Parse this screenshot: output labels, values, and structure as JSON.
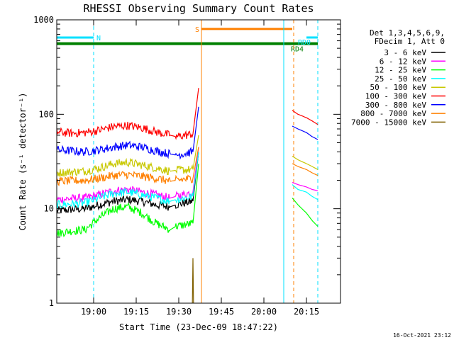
{
  "chart_data": {
    "type": "line",
    "title": "RHESSI Observing Summary Count Rates",
    "xlabel": "Start Time (23-Dec-09 18:47:22)",
    "ylabel": "Count Rate (s⁻¹ detector⁻¹)",
    "footer": "16-Oct-2021 23:12",
    "x_axis": {
      "start": "18:47:22",
      "end": "20:27",
      "scale": "linear",
      "ticks": [
        {
          "minute": 13,
          "label": "19:00"
        },
        {
          "minute": 28,
          "label": "19:15"
        },
        {
          "minute": 43,
          "label": "19:30"
        },
        {
          "minute": 58,
          "label": "19:45"
        },
        {
          "minute": 73,
          "label": "20:00"
        },
        {
          "minute": 88,
          "label": "20:15"
        }
      ]
    },
    "y_axis": {
      "scale": "log",
      "range": [
        1,
        1000
      ],
      "ticks": [
        {
          "value": 1,
          "label": "1"
        },
        {
          "value": 10,
          "label": "10"
        },
        {
          "value": 100,
          "label": "100"
        },
        {
          "value": 1000,
          "label": "1000"
        }
      ]
    },
    "legend": {
      "position": "right",
      "header": [
        "Det 1,3,4,5,6,9,",
        "FDecim 1, Att 0"
      ]
    },
    "series": [
      {
        "name": "3 - 6 keV",
        "color": "#000000",
        "values": [
          [
            0,
            9.5
          ],
          [
            5,
            9.8
          ],
          [
            10,
            10
          ],
          [
            15,
            11
          ],
          [
            20,
            12
          ],
          [
            25,
            12.5
          ],
          [
            30,
            12
          ],
          [
            35,
            11
          ],
          [
            40,
            10.5
          ],
          [
            42,
            11
          ],
          [
            48,
            12
          ],
          [
            50,
            40
          ]
        ]
      },
      {
        "name": "6 - 12 keV",
        "color": "#ff00ff",
        "values": [
          [
            0,
            12.5
          ],
          [
            5,
            12.8
          ],
          [
            10,
            13
          ],
          [
            15,
            14
          ],
          [
            20,
            15.5
          ],
          [
            25,
            16
          ],
          [
            30,
            15
          ],
          [
            35,
            14
          ],
          [
            40,
            13
          ],
          [
            42,
            13.5
          ],
          [
            48,
            15
          ],
          [
            50,
            45
          ],
          [
            83,
            19
          ],
          [
            85,
            18
          ],
          [
            88,
            17
          ],
          [
            90,
            16
          ],
          [
            92,
            15.5
          ]
        ]
      },
      {
        "name": "12 - 25 keV",
        "color": "#00ff00",
        "values": [
          [
            0,
            5.5
          ],
          [
            5,
            5.8
          ],
          [
            10,
            6
          ],
          [
            15,
            8
          ],
          [
            20,
            10
          ],
          [
            25,
            10.5
          ],
          [
            30,
            9
          ],
          [
            35,
            7
          ],
          [
            40,
            6
          ],
          [
            42,
            6.5
          ],
          [
            48,
            7
          ],
          [
            50,
            30
          ],
          [
            83,
            13
          ],
          [
            85,
            11
          ],
          [
            88,
            9
          ],
          [
            90,
            7.5
          ],
          [
            92,
            6.5
          ]
        ]
      },
      {
        "name": "25 - 50 keV",
        "color": "#00ffff",
        "values": [
          [
            0,
            11
          ],
          [
            5,
            11.2
          ],
          [
            10,
            11.5
          ],
          [
            15,
            13
          ],
          [
            20,
            14.5
          ],
          [
            25,
            15
          ],
          [
            30,
            14
          ],
          [
            35,
            13
          ],
          [
            40,
            12
          ],
          [
            42,
            12.5
          ],
          [
            48,
            13.5
          ],
          [
            50,
            40
          ],
          [
            83,
            18
          ],
          [
            85,
            16
          ],
          [
            88,
            15
          ],
          [
            90,
            13.5
          ],
          [
            92,
            12.5
          ]
        ]
      },
      {
        "name": "50 - 100 keV",
        "color": "#c8c800",
        "values": [
          [
            0,
            24
          ],
          [
            5,
            24.5
          ],
          [
            10,
            25
          ],
          [
            15,
            27
          ],
          [
            20,
            30
          ],
          [
            25,
            31
          ],
          [
            30,
            29
          ],
          [
            35,
            27
          ],
          [
            40,
            25
          ],
          [
            42,
            25.5
          ],
          [
            48,
            26
          ],
          [
            50,
            60
          ],
          [
            83,
            36
          ],
          [
            85,
            33
          ],
          [
            88,
            30
          ],
          [
            90,
            28
          ],
          [
            92,
            26
          ]
        ]
      },
      {
        "name": "100 - 300 keV",
        "color": "#ff0000",
        "values": [
          [
            0,
            65
          ],
          [
            5,
            63
          ],
          [
            10,
            64
          ],
          [
            15,
            68
          ],
          [
            20,
            74
          ],
          [
            25,
            76
          ],
          [
            30,
            72
          ],
          [
            35,
            65
          ],
          [
            40,
            60
          ],
          [
            42,
            58
          ],
          [
            48,
            62
          ],
          [
            50,
            190
          ],
          [
            83,
            110
          ],
          [
            85,
            100
          ],
          [
            88,
            92
          ],
          [
            90,
            85
          ],
          [
            92,
            78
          ]
        ]
      },
      {
        "name": "300 - 800 keV",
        "color": "#0000ff",
        "values": [
          [
            0,
            42
          ],
          [
            5,
            41
          ],
          [
            10,
            40
          ],
          [
            15,
            42
          ],
          [
            20,
            45
          ],
          [
            25,
            47
          ],
          [
            30,
            45
          ],
          [
            35,
            41
          ],
          [
            40,
            38
          ],
          [
            42,
            37
          ],
          [
            48,
            40
          ],
          [
            50,
            120
          ],
          [
            83,
            75
          ],
          [
            85,
            70
          ],
          [
            88,
            64
          ],
          [
            90,
            58
          ],
          [
            92,
            54
          ]
        ]
      },
      {
        "name": "800 - 7000 keV",
        "color": "#ff8000",
        "values": [
          [
            0,
            19.5
          ],
          [
            5,
            19.7
          ],
          [
            10,
            20
          ],
          [
            15,
            21
          ],
          [
            20,
            22.5
          ],
          [
            25,
            23
          ],
          [
            30,
            22
          ],
          [
            35,
            21
          ],
          [
            40,
            19.5
          ],
          [
            42,
            20
          ],
          [
            48,
            21
          ],
          [
            50,
            45
          ],
          [
            83,
            30
          ],
          [
            85,
            28
          ],
          [
            88,
            26
          ],
          [
            90,
            24
          ],
          [
            92,
            22.5
          ]
        ]
      },
      {
        "name": "7000 - 15000 keV",
        "color": "#806000",
        "values": [
          [
            47.8,
            1
          ],
          [
            48,
            3
          ],
          [
            48.2,
            1
          ]
        ]
      }
    ],
    "flags": [
      {
        "label": "N",
        "color": "#00e0ff",
        "y": 650,
        "x_start": 0,
        "x_end": 13
      },
      {
        "label": "S",
        "color": "#ff8000",
        "y": 800,
        "x_start": 51,
        "x_end": 83
      },
      {
        "label": "RD4",
        "color": "#008000",
        "y": 560,
        "x_start": 0,
        "x_end": 92
      },
      {
        "label": "RD0",
        "color": "#00e0ff",
        "y": 650,
        "x_start": 88,
        "x_end": 92
      }
    ],
    "vlines": [
      {
        "x": 0,
        "color": "#00e0ff",
        "style": "solid"
      },
      {
        "x": 13,
        "color": "#00e0ff",
        "style": "dashed"
      },
      {
        "x": 51,
        "color": "#ff8000",
        "style": "solid"
      },
      {
        "x": 80,
        "color": "#00e0ff",
        "style": "solid"
      },
      {
        "x": 83.5,
        "color": "#ff8000",
        "style": "dashed"
      },
      {
        "x": 92,
        "color": "#00e0ff",
        "style": "dashed"
      }
    ]
  }
}
